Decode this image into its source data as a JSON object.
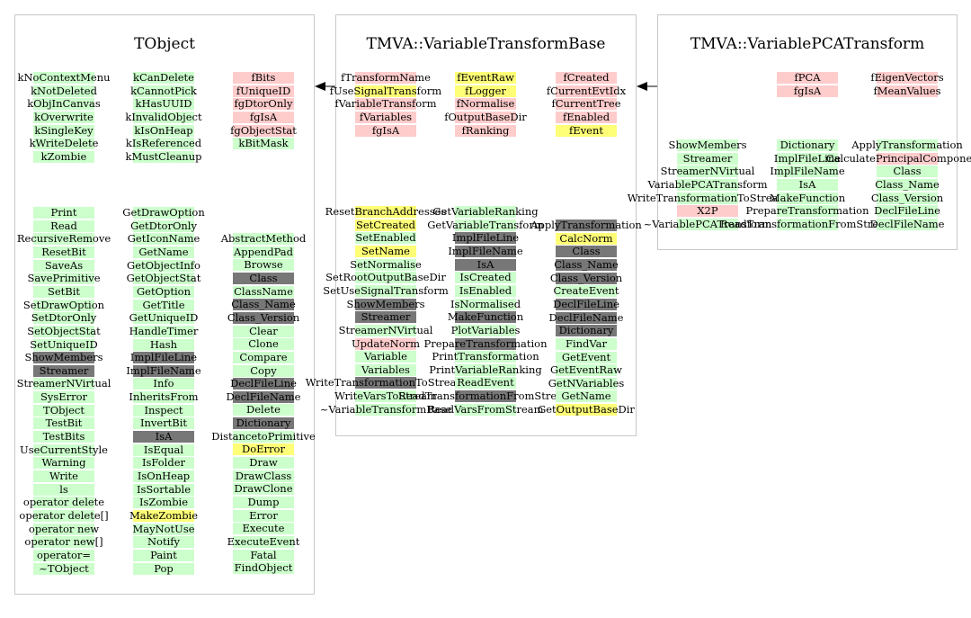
{
  "diagram": {
    "arrows": [
      {
        "from": "TMVA::VariableTransformBase",
        "to": "TObject"
      },
      {
        "from": "TMVA::VariablePCATransform",
        "to": "TMVA::VariableTransformBase"
      }
    ],
    "panels": [
      {
        "title": "TObject",
        "columns": [
          {
            "items": [
              {
                "t": "kNoContextMenu",
                "c": "g"
              },
              {
                "t": "kNotDeleted",
                "c": "g"
              },
              {
                "t": "kObjInCanvas",
                "c": "g"
              },
              {
                "t": "kOverwrite",
                "c": "g"
              },
              {
                "t": "kSingleKey",
                "c": "g"
              },
              {
                "t": "kWriteDelete",
                "c": "g"
              },
              {
                "t": "kZombie",
                "c": "g"
              }
            ]
          },
          {
            "items": [
              {
                "t": "kCanDelete",
                "c": "g"
              },
              {
                "t": "kCannotPick",
                "c": "g"
              },
              {
                "t": "kHasUUID",
                "c": "g"
              },
              {
                "t": "kInvalidObject",
                "c": "g"
              },
              {
                "t": "kIsOnHeap",
                "c": "g"
              },
              {
                "t": "kIsReferenced",
                "c": "g"
              },
              {
                "t": "kMustCleanup",
                "c": "g"
              }
            ]
          },
          {
            "items": [
              {
                "t": "fBits",
                "c": "p"
              },
              {
                "t": "fUniqueID",
                "c": "p"
              },
              {
                "t": "fgDtorOnly",
                "c": "p"
              },
              {
                "t": "fgIsA",
                "c": "p"
              },
              {
                "t": "fgObjectStat",
                "c": "p"
              },
              {
                "t": "kBitMask",
                "c": "g"
              }
            ]
          },
          {
            "items": [
              {
                "t": "Print",
                "c": "g"
              },
              {
                "t": "Read",
                "c": "g"
              },
              {
                "t": "RecursiveRemove",
                "c": "g"
              },
              {
                "t": "ResetBit",
                "c": "g"
              },
              {
                "t": "SaveAs",
                "c": "g"
              },
              {
                "t": "SavePrimitive",
                "c": "g"
              },
              {
                "t": "SetBit",
                "c": "g"
              },
              {
                "t": "SetDrawOption",
                "c": "g"
              },
              {
                "t": "SetDtorOnly",
                "c": "g"
              },
              {
                "t": "SetObjectStat",
                "c": "g"
              },
              {
                "t": "SetUniqueID",
                "c": "g"
              },
              {
                "t": "ShowMembers",
                "c": "d"
              },
              {
                "t": "Streamer",
                "c": "d"
              },
              {
                "t": "StreamerNVirtual",
                "c": "g"
              },
              {
                "t": "SysError",
                "c": "g"
              },
              {
                "t": "TObject",
                "c": "g"
              },
              {
                "t": "TestBit",
                "c": "g"
              },
              {
                "t": "TestBits",
                "c": "g"
              },
              {
                "t": "UseCurrentStyle",
                "c": "g"
              },
              {
                "t": "Warning",
                "c": "g"
              },
              {
                "t": "Write",
                "c": "g"
              },
              {
                "t": "ls",
                "c": "g"
              },
              {
                "t": "operator delete",
                "c": "g"
              },
              {
                "t": "operator delete[]",
                "c": "g"
              },
              {
                "t": "operator new",
                "c": "g"
              },
              {
                "t": "operator new[]",
                "c": "g"
              },
              {
                "t": "operator=",
                "c": "g"
              },
              {
                "t": "~TObject",
                "c": "g"
              }
            ]
          },
          {
            "items": [
              {
                "t": "GetDrawOption",
                "c": "g"
              },
              {
                "t": "GetDtorOnly",
                "c": "g"
              },
              {
                "t": "GetIconName",
                "c": "g"
              },
              {
                "t": "GetName",
                "c": "g"
              },
              {
                "t": "GetObjectInfo",
                "c": "g"
              },
              {
                "t": "GetObjectStat",
                "c": "g"
              },
              {
                "t": "GetOption",
                "c": "g"
              },
              {
                "t": "GetTitle",
                "c": "g"
              },
              {
                "t": "GetUniqueID",
                "c": "g"
              },
              {
                "t": "HandleTimer",
                "c": "g"
              },
              {
                "t": "Hash",
                "c": "g"
              },
              {
                "t": "ImplFileLine",
                "c": "d"
              },
              {
                "t": "ImplFileName",
                "c": "d"
              },
              {
                "t": "Info",
                "c": "g"
              },
              {
                "t": "InheritsFrom",
                "c": "g"
              },
              {
                "t": "Inspect",
                "c": "g"
              },
              {
                "t": "InvertBit",
                "c": "g"
              },
              {
                "t": "IsA",
                "c": "d"
              },
              {
                "t": "IsEqual",
                "c": "g"
              },
              {
                "t": "IsFolder",
                "c": "g"
              },
              {
                "t": "IsOnHeap",
                "c": "g"
              },
              {
                "t": "IsSortable",
                "c": "g"
              },
              {
                "t": "IsZombie",
                "c": "g"
              },
              {
                "t": "MakeZombie",
                "c": "y"
              },
              {
                "t": "MayNotUse",
                "c": "g"
              },
              {
                "t": "Notify",
                "c": "g"
              },
              {
                "t": "Paint",
                "c": "g"
              },
              {
                "t": "Pop",
                "c": "g"
              }
            ]
          },
          {
            "items": [
              {
                "t": "AbstractMethod",
                "c": "g"
              },
              {
                "t": "AppendPad",
                "c": "g"
              },
              {
                "t": "Browse",
                "c": "g"
              },
              {
                "t": "Class",
                "c": "d"
              },
              {
                "t": "ClassName",
                "c": "g"
              },
              {
                "t": "Class_Name",
                "c": "d"
              },
              {
                "t": "Class_Version",
                "c": "d"
              },
              {
                "t": "Clear",
                "c": "g"
              },
              {
                "t": "Clone",
                "c": "g"
              },
              {
                "t": "Compare",
                "c": "g"
              },
              {
                "t": "Copy",
                "c": "g"
              },
              {
                "t": "DeclFileLine",
                "c": "d"
              },
              {
                "t": "DeclFileName",
                "c": "d"
              },
              {
                "t": "Delete",
                "c": "g"
              },
              {
                "t": "Dictionary",
                "c": "d"
              },
              {
                "t": "DistancetoPrimitive",
                "c": "g"
              },
              {
                "t": "DoError",
                "c": "y"
              },
              {
                "t": "Draw",
                "c": "g"
              },
              {
                "t": "DrawClass",
                "c": "g"
              },
              {
                "t": "DrawClone",
                "c": "g"
              },
              {
                "t": "Dump",
                "c": "g"
              },
              {
                "t": "Error",
                "c": "g"
              },
              {
                "t": "Execute",
                "c": "g"
              },
              {
                "t": "ExecuteEvent",
                "c": "g"
              },
              {
                "t": "Fatal",
                "c": "g"
              },
              {
                "t": "FindObject",
                "c": "g"
              }
            ]
          }
        ]
      },
      {
        "title": "TMVA::VariableTransformBase",
        "columns": [
          {
            "items": [
              {
                "t": "fTransformName",
                "c": "p"
              },
              {
                "t": "fUseSignalTransform",
                "c": "y"
              },
              {
                "t": "fVariableTransform",
                "c": "p"
              },
              {
                "t": "fVariables",
                "c": "p"
              },
              {
                "t": "fgIsA",
                "c": "p"
              }
            ]
          },
          {
            "items": [
              {
                "t": "fEventRaw",
                "c": "y"
              },
              {
                "t": "fLogger",
                "c": "y"
              },
              {
                "t": "fNormalise",
                "c": "p"
              },
              {
                "t": "fOutputBaseDir",
                "c": "p"
              },
              {
                "t": "fRanking",
                "c": "p"
              }
            ]
          },
          {
            "items": [
              {
                "t": "fCreated",
                "c": "p"
              },
              {
                "t": "fCurrentEvtIdx",
                "c": "p"
              },
              {
                "t": "fCurrentTree",
                "c": "p"
              },
              {
                "t": "fEnabled",
                "c": "p"
              },
              {
                "t": "fEvent",
                "c": "y"
              }
            ]
          },
          {
            "items": [
              {
                "t": "ResetBranchAddresses",
                "c": "y"
              },
              {
                "t": "SetCreated",
                "c": "y"
              },
              {
                "t": "SetEnabled",
                "c": "g"
              },
              {
                "t": "SetName",
                "c": "y"
              },
              {
                "t": "SetNormalise",
                "c": "g"
              },
              {
                "t": "SetRootOutputBaseDir",
                "c": "g"
              },
              {
                "t": "SetUseSignalTransform",
                "c": "g"
              },
              {
                "t": "ShowMembers",
                "c": "d"
              },
              {
                "t": "Streamer",
                "c": "d"
              },
              {
                "t": "StreamerNVirtual",
                "c": "g"
              },
              {
                "t": "UpdateNorm",
                "c": "p"
              },
              {
                "t": "Variable",
                "c": "g"
              },
              {
                "t": "Variables",
                "c": "g"
              },
              {
                "t": "WriteTransformationToStream",
                "c": "d"
              },
              {
                "t": "WriteVarsToStream",
                "c": "g"
              },
              {
                "t": "~VariableTransformBase",
                "c": "g"
              }
            ]
          },
          {
            "items": [
              {
                "t": "GetVariableRanking",
                "c": "g"
              },
              {
                "t": "GetVariableTransform",
                "c": "g"
              },
              {
                "t": "ImplFileLine",
                "c": "d"
              },
              {
                "t": "ImplFileName",
                "c": "d"
              },
              {
                "t": "IsA",
                "c": "d"
              },
              {
                "t": "IsCreated",
                "c": "g"
              },
              {
                "t": "IsEnabled",
                "c": "g"
              },
              {
                "t": "IsNormalised",
                "c": "g"
              },
              {
                "t": "MakeFunction",
                "c": "d"
              },
              {
                "t": "PlotVariables",
                "c": "g"
              },
              {
                "t": "PrepareTransformation",
                "c": "d"
              },
              {
                "t": "PrintTransformation",
                "c": "g"
              },
              {
                "t": "PrintVariableRanking",
                "c": "g"
              },
              {
                "t": "ReadEvent",
                "c": "g"
              },
              {
                "t": "ReadTransformationFromStream",
                "c": "d"
              },
              {
                "t": "ReadVarsFromStream",
                "c": "g"
              }
            ]
          },
          {
            "items": [
              {
                "t": "ApplyTransformation",
                "c": "d"
              },
              {
                "t": "CalcNorm",
                "c": "y"
              },
              {
                "t": "Class",
                "c": "d"
              },
              {
                "t": "Class_Name",
                "c": "d"
              },
              {
                "t": "Class_Version",
                "c": "d"
              },
              {
                "t": "CreateEvent",
                "c": "g"
              },
              {
                "t": "DeclFileLine",
                "c": "d"
              },
              {
                "t": "DeclFileName",
                "c": "d"
              },
              {
                "t": "Dictionary",
                "c": "d"
              },
              {
                "t": "FindVar",
                "c": "g"
              },
              {
                "t": "GetEvent",
                "c": "g"
              },
              {
                "t": "GetEventRaw",
                "c": "g"
              },
              {
                "t": "GetNVariables",
                "c": "g"
              },
              {
                "t": "GetName",
                "c": "g"
              },
              {
                "t": "GetOutputBaseDir",
                "c": "y"
              }
            ]
          }
        ]
      },
      {
        "title": "TMVA::VariablePCATransform",
        "columns": [
          {
            "items": []
          },
          {
            "items": [
              {
                "t": "fPCA",
                "c": "p"
              },
              {
                "t": "fgIsA",
                "c": "p"
              }
            ]
          },
          {
            "items": [
              {
                "t": "fEigenVectors",
                "c": "p"
              },
              {
                "t": "fMeanValues",
                "c": "p"
              }
            ]
          },
          {
            "items": [
              {
                "t": "ShowMembers",
                "c": "g"
              },
              {
                "t": "Streamer",
                "c": "g"
              },
              {
                "t": "StreamerNVirtual",
                "c": "g"
              },
              {
                "t": "VariablePCATransform",
                "c": "g"
              },
              {
                "t": "WriteTransformationToStream",
                "c": "g"
              },
              {
                "t": "X2P",
                "c": "p"
              },
              {
                "t": "~VariablePCATransform",
                "c": "g"
              }
            ]
          },
          {
            "items": [
              {
                "t": "Dictionary",
                "c": "g"
              },
              {
                "t": "ImplFileLine",
                "c": "g"
              },
              {
                "t": "ImplFileName",
                "c": "g"
              },
              {
                "t": "IsA",
                "c": "g"
              },
              {
                "t": "MakeFunction",
                "c": "g"
              },
              {
                "t": "PrepareTransformation",
                "c": "g"
              },
              {
                "t": "ReadTransformationFromStream",
                "c": "g"
              }
            ]
          },
          {
            "items": [
              {
                "t": "ApplyTransformation",
                "c": "g"
              },
              {
                "t": "CalculatePrincipalComponents",
                "c": "p"
              },
              {
                "t": "Class",
                "c": "g"
              },
              {
                "t": "Class_Name",
                "c": "g"
              },
              {
                "t": "Class_Version",
                "c": "g"
              },
              {
                "t": "DeclFileLine",
                "c": "g"
              },
              {
                "t": "DeclFileName",
                "c": "g"
              }
            ]
          }
        ]
      }
    ]
  }
}
